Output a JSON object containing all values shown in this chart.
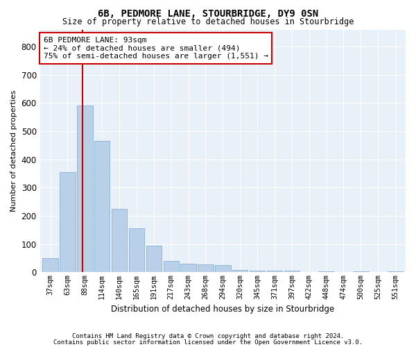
{
  "title1": "6B, PEDMORE LANE, STOURBRIDGE, DY9 0SN",
  "title2": "Size of property relative to detached houses in Stourbridge",
  "xlabel": "Distribution of detached houses by size in Stourbridge",
  "ylabel": "Number of detached properties",
  "categories": [
    "37sqm",
    "63sqm",
    "88sqm",
    "114sqm",
    "140sqm",
    "165sqm",
    "191sqm",
    "217sqm",
    "243sqm",
    "268sqm",
    "294sqm",
    "320sqm",
    "345sqm",
    "371sqm",
    "397sqm",
    "422sqm",
    "448sqm",
    "474sqm",
    "500sqm",
    "525sqm",
    "551sqm"
  ],
  "values": [
    50,
    355,
    590,
    465,
    225,
    155,
    95,
    40,
    30,
    27,
    25,
    8,
    7,
    6,
    5,
    0,
    4,
    0,
    4,
    0,
    4
  ],
  "bar_color": "#b8d0e8",
  "bar_edge_color": "#8ab0d0",
  "background_color": "#e8f0f8",
  "grid_color": "#ffffff",
  "vline_color": "#cc0000",
  "vline_x": 1.87,
  "annotation_text": "6B PEDMORE LANE: 93sqm\n← 24% of detached houses are smaller (494)\n75% of semi-detached houses are larger (1,551) →",
  "annotation_box_color": "white",
  "annotation_box_edge": "#cc0000",
  "ylim": [
    0,
    860
  ],
  "yticks": [
    0,
    100,
    200,
    300,
    400,
    500,
    600,
    700,
    800
  ],
  "footer1": "Contains HM Land Registry data © Crown copyright and database right 2024.",
  "footer2": "Contains public sector information licensed under the Open Government Licence v3.0."
}
